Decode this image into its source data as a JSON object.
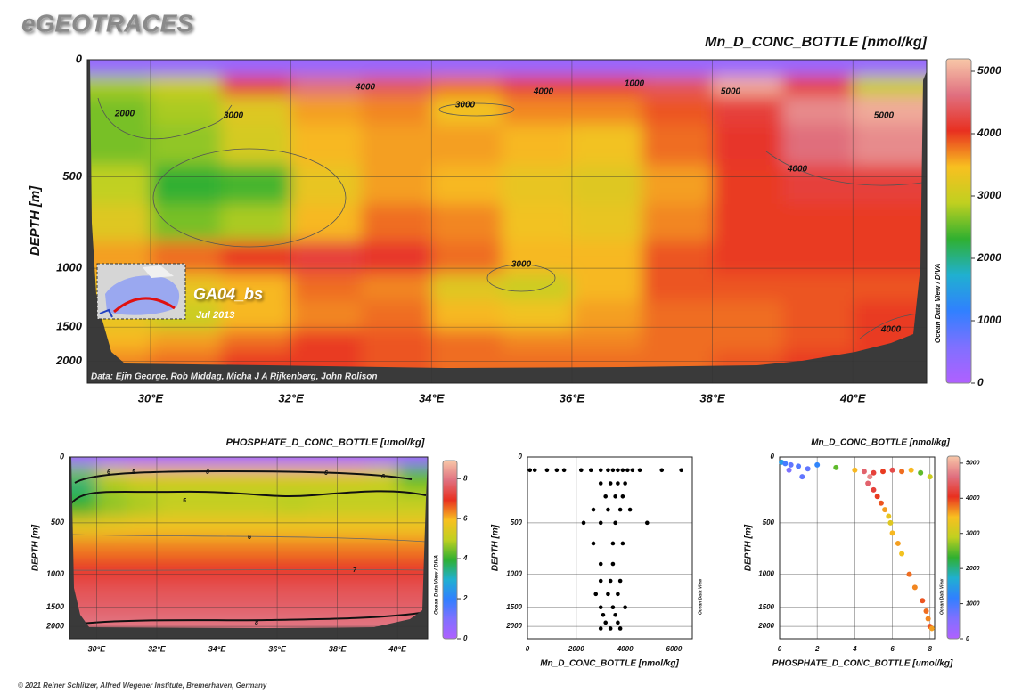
{
  "header": {
    "logo": "eGEOTRACES"
  },
  "footer": "© 2021 Reiner Schlitzer, Alfred Wegener Institute, Bremerhaven, Germany",
  "chart_data": [
    {
      "type": "section",
      "title": "Mn_D_CONC_BOTTLE [nmol/kg]",
      "ylabel": "DEPTH [m]",
      "source": "Data: Ejin George, Rob Middag, Micha J A Rijkenberg, John Rolison",
      "watermark": "Ocean Data View / DIVA",
      "inset_label": "GA04_bs",
      "inset_date": "Jul 2013",
      "xlim": [
        29.1,
        41.05
      ],
      "xticks": [
        {
          "value": 30,
          "label": "30°E"
        },
        {
          "value": 32,
          "label": "32°E"
        },
        {
          "value": 34,
          "label": "34°E"
        },
        {
          "value": 36,
          "label": "36°E"
        },
        {
          "value": 38,
          "label": "38°E"
        },
        {
          "value": 40,
          "label": "40°E"
        }
      ],
      "ylim": [
        0,
        2350
      ],
      "yticks": [
        0,
        500,
        1000,
        1500,
        2000
      ],
      "grid": true,
      "zlim": [
        0,
        5200
      ],
      "zticks": [
        0,
        1000,
        2000,
        3000,
        4000,
        5000
      ],
      "colorscale": [
        "#b060ff",
        "#8070ff",
        "#3080ff",
        "#20b0d0",
        "#30b030",
        "#c0d020",
        "#f8c020",
        "#e83020",
        "#e07080",
        "#f8c8a8"
      ],
      "lon": [
        29.5,
        30.5,
        31.5,
        32.5,
        33.5,
        34.5,
        35.5,
        36.5,
        37.5,
        38.5,
        39.5,
        40.5
      ],
      "depth": [
        25,
        110,
        200,
        350,
        550,
        750,
        950,
        1150,
        1400,
        1700,
        2000
      ],
      "z": [
        [
          300,
          300,
          300,
          300,
          300,
          300,
          300,
          300,
          300,
          300,
          300,
          300
        ],
        [
          2800,
          3000,
          4200,
          4600,
          4400,
          3800,
          4200,
          4200,
          4400,
          5000,
          4200,
          3000
        ],
        [
          2600,
          2800,
          3200,
          3600,
          3700,
          3400,
          3700,
          3700,
          3900,
          4200,
          4800,
          5000
        ],
        [
          2600,
          2700,
          3100,
          3500,
          3600,
          3600,
          3500,
          3400,
          3800,
          4100,
          4600,
          4800
        ],
        [
          2900,
          2300,
          2400,
          3300,
          3600,
          3500,
          3300,
          3200,
          3600,
          4000,
          4200,
          4200
        ],
        [
          3200,
          2600,
          2800,
          3500,
          3800,
          3700,
          3400,
          3300,
          3700,
          4000,
          4000,
          4000
        ],
        [
          3600,
          3800,
          4000,
          4200,
          4100,
          3800,
          3500,
          3500,
          3900,
          4000,
          4000,
          4000
        ],
        [
          3400,
          3300,
          3500,
          3800,
          3700,
          3200,
          3000,
          3500,
          3900,
          3900,
          3900,
          3900
        ],
        [
          3300,
          3000,
          3500,
          3700,
          3800,
          3500,
          3400,
          3600,
          3800,
          3800,
          3900,
          4000
        ],
        [
          3500,
          3600,
          3800,
          4000,
          3900,
          3800,
          3700,
          3700,
          3800,
          3800,
          3900,
          4000
        ],
        [
          3700,
          3800,
          4000,
          4000,
          3900,
          3800,
          3800,
          3800,
          3800,
          3900,
          4000,
          4000
        ]
      ],
      "contour_labels": [
        2000,
        3000,
        4000,
        3000,
        4000,
        1000,
        5000,
        5000,
        4000,
        3000,
        4000
      ]
    },
    {
      "type": "section",
      "title": "PHOSPHATE_D_CONC_BOTTLE [umol/kg]",
      "ylabel": "DEPTH [m]",
      "watermark": "Ocean Data View / DIVA",
      "xlim": [
        29.1,
        41.0
      ],
      "xticks": [
        {
          "value": 30,
          "label": "30°E"
        },
        {
          "value": 32,
          "label": "32°E"
        },
        {
          "value": 34,
          "label": "34°E"
        },
        {
          "value": 36,
          "label": "36°E"
        },
        {
          "value": 38,
          "label": "38°E"
        },
        {
          "value": 40,
          "label": "40°E"
        }
      ],
      "ylim": [
        0,
        2300
      ],
      "yticks": [
        0,
        500,
        1000,
        1500,
        2000
      ],
      "grid": true,
      "zlim": [
        0,
        8.9
      ],
      "zticks": [
        0,
        2,
        4,
        6,
        8
      ],
      "colorscale": [
        "#b060ff",
        "#8070ff",
        "#3080ff",
        "#20b0d0",
        "#30b030",
        "#c0d020",
        "#f8c020",
        "#e83020",
        "#e07080",
        "#f8c8a8"
      ],
      "lon": [
        29.5,
        30.5,
        31.5,
        32.5,
        33.5,
        34.5,
        35.5,
        36.5,
        37.5,
        38.5,
        39.5,
        40.5
      ],
      "depth": [
        25,
        110,
        200,
        350,
        550,
        750,
        950,
        1150,
        1400,
        1700,
        2000
      ],
      "z": [
        [
          0.3,
          0.3,
          0.3,
          0.3,
          0.3,
          0.3,
          0.3,
          0.3,
          0.3,
          0.3,
          0.3,
          0.3
        ],
        [
          4.5,
          5.5,
          6,
          6,
          6,
          6,
          6,
          6,
          6,
          6,
          5.5,
          4
        ],
        [
          3.5,
          4.8,
          5,
          5,
          5,
          5,
          5,
          5,
          5,
          5,
          5,
          4.5
        ],
        [
          4,
          4.6,
          4.8,
          5,
          5,
          5,
          5,
          4.9,
          5,
          5,
          5,
          5
        ],
        [
          5.6,
          5.7,
          5.8,
          5.8,
          5.8,
          5.8,
          5.8,
          5.8,
          5.8,
          5.8,
          5.8,
          5.8
        ],
        [
          6.4,
          6.4,
          6.4,
          6.4,
          6.4,
          6.4,
          6.4,
          6.4,
          6.4,
          6.4,
          6.4,
          6.4
        ],
        [
          7,
          7,
          7,
          7,
          7,
          7,
          7,
          7,
          7,
          7,
          7,
          7
        ],
        [
          7.4,
          7.4,
          7.4,
          7.4,
          7.4,
          7.4,
          7.4,
          7.4,
          7.4,
          7.4,
          7.4,
          7.4
        ],
        [
          7.6,
          7.6,
          7.6,
          7.6,
          7.6,
          7.6,
          7.6,
          7.6,
          7.6,
          7.6,
          7.6,
          7.6
        ],
        [
          7.8,
          7.8,
          7.8,
          7.8,
          7.8,
          7.8,
          7.8,
          7.8,
          7.8,
          7.8,
          7.8,
          7.8
        ],
        [
          8,
          8,
          8,
          8,
          8,
          8,
          8,
          8,
          8,
          8,
          8,
          8
        ]
      ],
      "contour_labels": [
        6,
        5,
        6,
        6,
        6,
        5,
        6,
        7,
        8
      ]
    },
    {
      "type": "scatter",
      "xlabel": "Mn_D_CONC_BOTTLE [nmol/kg]",
      "ylabel": "DEPTH [m]",
      "watermark": "Ocean Data View",
      "xlim": [
        0,
        6750
      ],
      "xticks": [
        0,
        2000,
        4000,
        6000
      ],
      "ylim": [
        0,
        2300
      ],
      "yticks": [
        0,
        500,
        1000,
        1500,
        2000
      ],
      "grid": true,
      "color": "#000000",
      "x": [
        100,
        300,
        800,
        1200,
        1500,
        2200,
        2600,
        3000,
        3300,
        3500,
        3700,
        3900,
        4100,
        4300,
        4600,
        5500,
        6300,
        3000,
        3400,
        3700,
        4000,
        3200,
        3600,
        3900,
        2700,
        3300,
        3800,
        4200,
        2300,
        3000,
        3600,
        4900,
        2700,
        3500,
        3900,
        3000,
        3500,
        3000,
        3400,
        3800,
        2800,
        3300,
        3700,
        3000,
        3500,
        4000,
        3100,
        3600,
        3200,
        3700,
        3000,
        3400,
        3800
      ],
      "y": [
        100,
        100,
        100,
        100,
        100,
        100,
        100,
        100,
        100,
        100,
        100,
        100,
        100,
        100,
        100,
        100,
        100,
        200,
        200,
        200,
        200,
        300,
        300,
        300,
        400,
        400,
        400,
        400,
        500,
        500,
        500,
        500,
        700,
        700,
        700,
        900,
        900,
        1100,
        1100,
        1100,
        1300,
        1300,
        1300,
        1500,
        1500,
        1500,
        1700,
        1700,
        1900,
        1900,
        2050,
        2050,
        2050
      ]
    },
    {
      "type": "scatter",
      "title": "Mn_D_CONC_BOTTLE [nmol/kg]",
      "xlabel": "PHOSPHATE_D_CONC_BOTTLE [umol/kg]",
      "ylabel": "DEPTH [m]",
      "watermark": "Ocean Data View",
      "xlim": [
        0,
        8.25
      ],
      "xticks": [
        0,
        2,
        4,
        6,
        8
      ],
      "ylim": [
        0,
        2300
      ],
      "yticks": [
        0,
        500,
        1000,
        1500,
        2000
      ],
      "grid": true,
      "zlim": [
        0,
        5200
      ],
      "zticks": [
        0,
        1000,
        2000,
        3000,
        4000,
        5000
      ],
      "colorscale": [
        "#b060ff",
        "#8070ff",
        "#3080ff",
        "#20b0d0",
        "#30b030",
        "#c0d020",
        "#f8c020",
        "#e83020",
        "#e07080",
        "#f8c8a8"
      ],
      "x": [
        0.1,
        0.3,
        0.6,
        1,
        1.5,
        2,
        3,
        4,
        4.5,
        5,
        5.5,
        6,
        6.5,
        7,
        7.5,
        8,
        4.8,
        4.7,
        5,
        5.2,
        5.4,
        5.6,
        5.8,
        5.9,
        6,
        6.3,
        6.5,
        6.9,
        7.2,
        7.6,
        7.8,
        7.9,
        8,
        8.1,
        1.2,
        0.5
      ],
      "y": [
        40,
        50,
        60,
        70,
        90,
        60,
        80,
        100,
        110,
        120,
        110,
        100,
        110,
        100,
        120,
        150,
        150,
        200,
        250,
        300,
        350,
        400,
        450,
        500,
        600,
        700,
        800,
        1000,
        1200,
        1400,
        1600,
        1800,
        2000,
        2050,
        150,
        100
      ],
      "z": [
        1500,
        1000,
        800,
        900,
        800,
        1200,
        2500,
        3500,
        4500,
        4200,
        4000,
        4300,
        3800,
        3500,
        2500,
        3000,
        4800,
        4500,
        4200,
        4000,
        3900,
        3600,
        3300,
        3200,
        3500,
        3600,
        3400,
        3800,
        3700,
        3900,
        3800,
        3700,
        3900,
        3600,
        800,
        600
      ]
    }
  ]
}
